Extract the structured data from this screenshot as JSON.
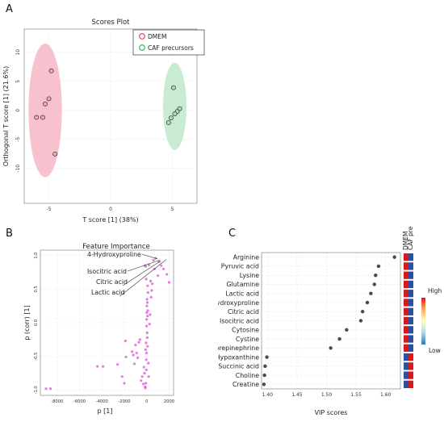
{
  "panels": {
    "a": {
      "letter": "A",
      "chart_data": {
        "type": "scatter",
        "title": "Scores Plot",
        "xlabel": "T score [1] (38%)",
        "ylabel": "Orthogonal T score [1] (21.6%)",
        "xlim": [
          -7,
          7
        ],
        "ylim": [
          -16,
          14
        ],
        "xticks": [
          -5,
          0,
          5
        ],
        "yticks": [
          -10,
          -5,
          0,
          5,
          10
        ],
        "legend_position": "top-right",
        "grid": true,
        "series": [
          {
            "name": "DMEM",
            "color": "#e8315f",
            "fill": "#f7a3b8",
            "points": [
              [
                -4.8,
                6.8
              ],
              [
                -5.0,
                2.0
              ],
              [
                -5.3,
                1.1
              ],
              [
                -5.5,
                -1.2
              ],
              [
                -6.0,
                -1.2
              ],
              [
                -4.5,
                -7.5
              ]
            ],
            "ellipse": {
              "cx": -5.3,
              "cy": 0.0,
              "rx": 1.35,
              "ry": 11.5,
              "color": "#f6b6c6"
            }
          },
          {
            "name": "CAF precursors",
            "color": "#2fb050",
            "fill": "#a7dfb5",
            "points": [
              [
                5.1,
                3.9
              ],
              [
                5.6,
                0.3
              ],
              [
                5.4,
                -0.2
              ],
              [
                5.2,
                -0.6
              ],
              [
                4.9,
                -1.3
              ],
              [
                4.7,
                -2.1
              ]
            ],
            "ellipse": {
              "cx": 5.2,
              "cy": 0.7,
              "rx": 0.95,
              "ry": 7.5,
              "color": "#bfe7c9"
            }
          }
        ]
      }
    },
    "b": {
      "letter": "B",
      "chart_data": {
        "type": "scatter",
        "title": "Feature Importance",
        "xlabel": "p [1]",
        "ylabel": "p (corr) [1]",
        "xlim": [
          -9500,
          2400
        ],
        "ylim": [
          -1.08,
          1.08
        ],
        "xticks": [
          -8000,
          -6000,
          -4000,
          -2000,
          0,
          2000
        ],
        "yticks": [
          -1.0,
          -0.5,
          0.0,
          0.5,
          1.0
        ],
        "point_color": "#e15ad8",
        "points": [
          [
            -9000,
            -0.98
          ],
          [
            -8600,
            -0.98
          ],
          [
            -4400,
            -0.65
          ],
          [
            -3900,
            -0.65
          ],
          [
            -2600,
            -0.62
          ],
          [
            -2200,
            -0.8
          ],
          [
            -2000,
            -0.9
          ],
          [
            -1900,
            -0.27
          ],
          [
            -1850,
            -0.51
          ],
          [
            -1300,
            -0.43
          ],
          [
            -1200,
            -0.48
          ],
          [
            -1100,
            -0.61
          ],
          [
            -1000,
            -0.33
          ],
          [
            -900,
            -0.45
          ],
          [
            -800,
            -0.52
          ],
          [
            -700,
            -0.29
          ],
          [
            -600,
            -0.25
          ],
          [
            -500,
            -0.86
          ],
          [
            -400,
            -0.8
          ],
          [
            -300,
            -0.91
          ],
          [
            -250,
            -0.66
          ],
          [
            -200,
            -0.75
          ],
          [
            -150,
            -0.95
          ],
          [
            -100,
            -0.4
          ],
          [
            -60,
            -0.3
          ],
          [
            -40,
            -0.55
          ],
          [
            -20,
            -0.45
          ],
          [
            -10,
            -0.05
          ],
          [
            0,
            0.05
          ],
          [
            10,
            0.15
          ],
          [
            20,
            0.25
          ],
          [
            30,
            0.35
          ],
          [
            40,
            -0.15
          ],
          [
            50,
            -0.22
          ],
          [
            60,
            0.3
          ],
          [
            70,
            0.1
          ],
          [
            80,
            -0.35
          ],
          [
            90,
            0.55
          ],
          [
            100,
            0.18
          ],
          [
            120,
            0.45
          ],
          [
            -30,
            -0.7
          ],
          [
            -80,
            -0.9
          ],
          [
            -120,
            -0.97
          ],
          [
            -50,
            0.65
          ],
          [
            -150,
            0.85
          ],
          [
            -100,
            0.84
          ],
          [
            200,
            0.86
          ],
          [
            350,
            0.62
          ],
          [
            400,
            0.38
          ],
          [
            500,
            0.58
          ],
          [
            450,
            0.48
          ],
          [
            800,
            0.96
          ],
          [
            1000,
            0.7
          ],
          [
            1100,
            0.91
          ],
          [
            1300,
            0.85
          ],
          [
            1500,
            0.8
          ],
          [
            2000,
            0.6
          ],
          [
            1800,
            0.72
          ],
          [
            600,
            0.93
          ],
          [
            700,
            0.8
          ],
          [
            300,
            0.12
          ],
          [
            250,
            -0.02
          ],
          [
            150,
            -0.6
          ],
          [
            180,
            -0.8
          ]
        ],
        "annotations": [
          {
            "text": "4-Hydroxyproline",
            "point": [
              950,
              0.95
            ]
          },
          {
            "text": "Isocitric acid",
            "point": [
              1150,
              0.93
            ]
          },
          {
            "text": "Citric acid",
            "point": [
              1250,
              0.92
            ]
          },
          {
            "text": "Lactic acid",
            "point": [
              1750,
              0.94
            ]
          }
        ]
      }
    },
    "c": {
      "letter": "C",
      "chart_data": {
        "type": "scatter",
        "title": "",
        "xlabel": "VIP scores",
        "xlim": [
          1.39,
          1.625
        ],
        "xticks": [
          1.4,
          1.45,
          1.5,
          1.55,
          1.6
        ],
        "categories": [
          "Arginine",
          "Pyruvic acid",
          "Lysine",
          "Glutamine",
          "Lactic acid",
          "4-Hydroxyproline",
          "Citric acid",
          "Isocitric acid",
          "Cytosine",
          "Cystine",
          "Norepinephrine",
          "Hypoxanthine",
          "Succinic acid",
          "Choline",
          "Creatine"
        ],
        "values": [
          1.615,
          1.588,
          1.583,
          1.581,
          1.575,
          1.569,
          1.561,
          1.558,
          1.534,
          1.522,
          1.507,
          1.399,
          1.396,
          1.395,
          1.394
        ],
        "point_color": "#4a4a4a",
        "grid": true,
        "heatmap": {
          "columns": [
            "DMEM",
            "CAF precursors"
          ],
          "colors": [
            [
              "#d7191c",
              "#2c4fa3"
            ],
            [
              "#d7191c",
              "#2c4fa3"
            ],
            [
              "#d7191c",
              "#2c4fa3"
            ],
            [
              "#d7191c",
              "#2c4fa3"
            ],
            [
              "#d7191c",
              "#2c4fa3"
            ],
            [
              "#d7191c",
              "#2c4fa3"
            ],
            [
              "#d7191c",
              "#2c4fa3"
            ],
            [
              "#d7191c",
              "#2c4fa3"
            ],
            [
              "#d7191c",
              "#2c4fa3"
            ],
            [
              "#d7191c",
              "#2c4fa3"
            ],
            [
              "#d7191c",
              "#2c4fa3"
            ],
            [
              "#2c4fa3",
              "#d7191c"
            ],
            [
              "#2c4fa3",
              "#d7191c"
            ],
            [
              "#2c4fa3",
              "#d7191c"
            ],
            [
              "#2c4fa3",
              "#d7191c"
            ]
          ]
        },
        "colorbar": {
          "high_label": "High",
          "low_label": "Low",
          "colors": [
            "#d7191c",
            "#fdae61",
            "#ffffbf",
            "#abd9e9",
            "#2c7bb6"
          ]
        }
      }
    }
  }
}
